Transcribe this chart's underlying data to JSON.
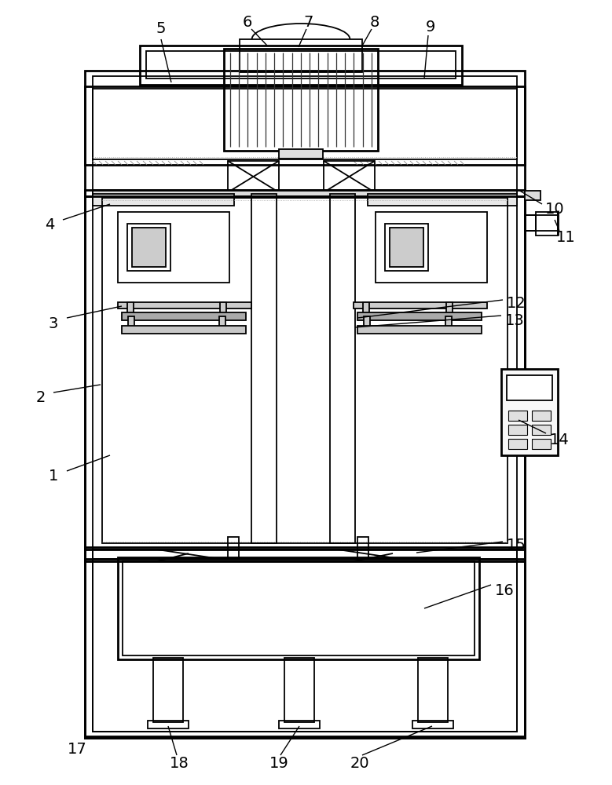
{
  "bg_color": "#ffffff",
  "lc": "#000000",
  "lw_thick": 2.0,
  "lw_med": 1.3,
  "lw_thin": 0.8,
  "fs": 14,
  "fig_w": 7.79,
  "fig_h": 10.0,
  "dpi": 100
}
